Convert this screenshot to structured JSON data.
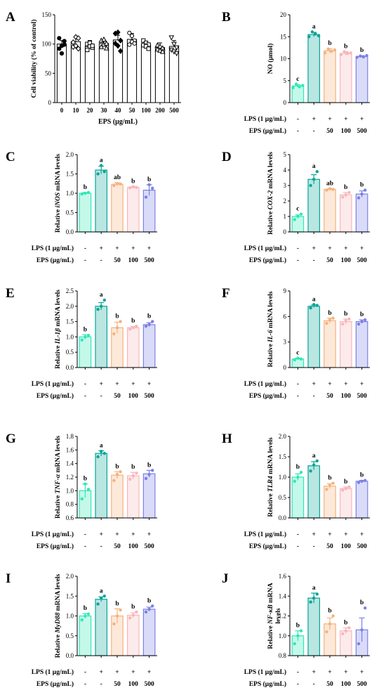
{
  "colors": {
    "ctrl": "#2ee8b5",
    "lps": "#0aa598",
    "e50": "#f6b27c",
    "e100": "#f9b6ba",
    "e500": "#7b80e6",
    "axis": "#000000"
  },
  "chart_data": [
    {
      "id": "A",
      "panel_label": "A",
      "type": "bar",
      "categories": [
        "0",
        "10",
        "20",
        "30",
        "40",
        "50",
        "100",
        "200",
        "500"
      ],
      "values": [
        100,
        104,
        96,
        101,
        107,
        108,
        99,
        94,
        96
      ],
      "points": [
        [
          92,
          97,
          105,
          110,
          84,
          99
        ],
        [
          95,
          112,
          110,
          103,
          97,
          92
        ],
        [
          100,
          96,
          94,
          90,
          102,
          97
        ],
        [
          106,
          99,
          101,
          95,
          108,
          93
        ],
        [
          118,
          120,
          106,
          101,
          97,
          88
        ],
        [
          119,
          114,
          106,
          99,
          104,
          101
        ],
        [
          106,
          102,
          99,
          98,
          96,
          92
        ],
        [
          98,
          96,
          93,
          91,
          89,
          87
        ],
        [
          111,
          100,
          94,
          90,
          87,
          84
        ]
      ],
      "markers": [
        "circle",
        "diamond",
        "square",
        "triangle",
        "diamond",
        "circle",
        "square",
        "triangle",
        "triangle-down"
      ],
      "ylabel": "Cell viability (% of control)",
      "xlabel": "EPS (μg/mL)",
      "ylim": [
        0,
        150
      ],
      "yticks": [
        "0",
        "50",
        "100",
        "150"
      ]
    },
    {
      "id": "B",
      "panel_label": "B",
      "type": "bar",
      "categories": [
        "ctrl",
        "lps",
        "e50",
        "e100",
        "e500"
      ],
      "values": [
        3.8,
        15.5,
        11.8,
        11.2,
        10.5
      ],
      "points": [
        [
          3.4,
          4.2,
          3.6,
          3.9
        ],
        [
          15.0,
          16.1,
          15.6,
          15.2
        ],
        [
          11.3,
          12.2,
          11.7,
          12.0
        ],
        [
          10.9,
          11.6,
          11.2,
          11.3
        ],
        [
          10.3,
          10.6,
          10.4,
          10.7
        ]
      ],
      "errors": [
        0.3,
        0.5,
        0.5,
        0.4,
        0.2
      ],
      "letters": [
        "c",
        "a",
        "b",
        "b",
        "b"
      ],
      "ylabel": "NO (μmol)",
      "italic": "",
      "ylim": [
        0,
        20
      ],
      "yticks": [
        "0",
        "5",
        "10",
        "15",
        "20"
      ]
    },
    {
      "id": "C",
      "panel_label": "C",
      "type": "bar",
      "categories": [
        "ctrl",
        "lps",
        "e50",
        "e100",
        "e500"
      ],
      "values": [
        1.0,
        1.6,
        1.23,
        1.15,
        1.08
      ],
      "points": [
        [
          0.98,
          1.0,
          1.02
        ],
        [
          1.5,
          1.72,
          1.56
        ],
        [
          1.2,
          1.25,
          1.24
        ],
        [
          1.14,
          1.17,
          1.15
        ],
        [
          0.9,
          1.22,
          1.13
        ]
      ],
      "errors": [
        0.02,
        0.1,
        0.04,
        0.02,
        0.14
      ],
      "letters": [
        "b",
        "a",
        "ab",
        "b",
        "b"
      ],
      "ylabel": [
        "Relative ",
        "iNOS",
        " mRNA levels"
      ],
      "ylim": [
        0,
        2.0
      ],
      "yticks": [
        "0.0",
        "0.5",
        "1.0",
        "1.5",
        "2.0"
      ]
    },
    {
      "id": "D",
      "panel_label": "D",
      "type": "bar",
      "categories": [
        "ctrl",
        "lps",
        "e50",
        "e100",
        "e500"
      ],
      "values": [
        1.0,
        3.4,
        2.75,
        2.4,
        2.45
      ],
      "points": [
        [
          0.8,
          1.0,
          1.15
        ],
        [
          3.0,
          3.4,
          3.9
        ],
        [
          2.7,
          2.8,
          2.75
        ],
        [
          2.25,
          2.4,
          2.55
        ],
        [
          2.2,
          2.45,
          2.7
        ]
      ],
      "errors": [
        0.1,
        0.3,
        0.05,
        0.15,
        0.2
      ],
      "letters": [
        "c",
        "a",
        "ab",
        "b",
        "b"
      ],
      "ylabel": [
        "Relative ",
        "COX-2",
        "  mRNA levels"
      ],
      "ylim": [
        0,
        5
      ],
      "yticks": [
        "0",
        "1",
        "2",
        "3",
        "4",
        "5"
      ]
    },
    {
      "id": "E",
      "panel_label": "E",
      "type": "bar",
      "categories": [
        "ctrl",
        "lps",
        "e50",
        "e100",
        "e500"
      ],
      "values": [
        1.0,
        2.0,
        1.3,
        1.3,
        1.4
      ],
      "points": [
        [
          0.9,
          1.0,
          1.05
        ],
        [
          1.9,
          2.0,
          2.2
        ],
        [
          1.1,
          1.3,
          1.5
        ],
        [
          1.25,
          1.3,
          1.35
        ],
        [
          1.35,
          1.4,
          1.5
        ]
      ],
      "errors": [
        0.07,
        0.12,
        0.18,
        0.04,
        0.06
      ],
      "letters": [
        "b",
        "a",
        "b",
        "b",
        "b"
      ],
      "ylabel": [
        "Relative ",
        "IL-1β",
        " mRNA levels"
      ],
      "ylim": [
        0,
        2.5
      ],
      "yticks": [
        "0.0",
        "0.5",
        "1.0",
        "1.5",
        "2.0",
        "2.5"
      ]
    },
    {
      "id": "F",
      "panel_label": "F",
      "type": "bar",
      "categories": [
        "ctrl",
        "lps",
        "e50",
        "e100",
        "e500"
      ],
      "values": [
        1.0,
        7.2,
        5.5,
        5.4,
        5.4
      ],
      "points": [
        [
          0.9,
          1.1,
          1.0
        ],
        [
          7.0,
          7.4,
          7.3
        ],
        [
          5.2,
          5.6,
          5.8
        ],
        [
          5.1,
          5.5,
          5.7
        ],
        [
          5.1,
          5.4,
          5.6
        ]
      ],
      "errors": [
        0.1,
        0.15,
        0.3,
        0.3,
        0.2
      ],
      "letters": [
        "c",
        "a",
        "b",
        "b",
        "b"
      ],
      "ylabel": [
        "Relative ",
        "IL-6",
        " mRNA levels"
      ],
      "ylim": [
        0,
        9
      ],
      "yticks": [
        "0",
        "3",
        "6",
        "9"
      ]
    },
    {
      "id": "G",
      "panel_label": "G",
      "type": "bar",
      "categories": [
        "ctrl",
        "lps",
        "e50",
        "e100",
        "e500"
      ],
      "values": [
        1.0,
        1.55,
        1.23,
        1.22,
        1.25
      ],
      "points": [
        [
          0.88,
          1.1,
          1.02
        ],
        [
          1.5,
          1.58,
          1.55
        ],
        [
          1.15,
          1.24,
          1.28
        ],
        [
          1.17,
          1.22,
          1.26
        ],
        [
          1.18,
          1.24,
          1.3
        ]
      ],
      "errors": [
        0.1,
        0.04,
        0.05,
        0.05,
        0.05
      ],
      "letters": [
        "b",
        "a",
        "b",
        "b",
        "b"
      ],
      "ylabel": [
        "Relative ",
        "TNF-α",
        " mRNA levels"
      ],
      "ylim": [
        0.6,
        1.8
      ],
      "yticks": [
        "0.6",
        "0.8",
        "1.0",
        "1.2",
        "1.4",
        "1.6",
        "1.8"
      ]
    },
    {
      "id": "H",
      "panel_label": "H",
      "type": "bar",
      "categories": [
        "ctrl",
        "lps",
        "e50",
        "e100",
        "e500"
      ],
      "values": [
        1.0,
        1.28,
        0.78,
        0.72,
        0.9
      ],
      "points": [
        [
          0.9,
          1.0,
          1.12
        ],
        [
          1.15,
          1.3,
          1.4
        ],
        [
          0.7,
          0.8,
          0.85
        ],
        [
          0.68,
          0.72,
          0.76
        ],
        [
          0.87,
          0.9,
          0.92
        ]
      ],
      "errors": [
        0.08,
        0.1,
        0.06,
        0.04,
        0.02
      ],
      "letters": [
        "b",
        "a",
        "b",
        "b",
        "b"
      ],
      "ylabel": [
        "Relative ",
        "TLR4",
        " mRNA levels"
      ],
      "ylim": [
        0,
        2.0
      ],
      "yticks": [
        "0.0",
        "0.5",
        "1.0",
        "1.5",
        "2.0"
      ]
    },
    {
      "id": "I",
      "panel_label": "I",
      "type": "bar",
      "categories": [
        "ctrl",
        "lps",
        "e50",
        "e100",
        "e500"
      ],
      "values": [
        1.0,
        1.42,
        1.0,
        1.02,
        1.17
      ],
      "points": [
        [
          0.9,
          1.0,
          1.05
        ],
        [
          1.3,
          1.45,
          1.5
        ],
        [
          0.8,
          1.0,
          1.15
        ],
        [
          0.95,
          1.02,
          1.1
        ],
        [
          1.1,
          1.17,
          1.25
        ]
      ],
      "errors": [
        0.06,
        0.06,
        0.18,
        0.06,
        0.05
      ],
      "letters": [
        "b",
        "a",
        "b",
        "b",
        "b"
      ],
      "ylabel": [
        "Relative ",
        "MyD88",
        " mRNA levels"
      ],
      "ylim": [
        0,
        2.0
      ],
      "yticks": [
        "0.0",
        "0.5",
        "1.0",
        "1.5",
        "2.0"
      ]
    },
    {
      "id": "J",
      "panel_label": "J",
      "type": "bar",
      "categories": [
        "ctrl",
        "lps",
        "e50",
        "e100",
        "e500"
      ],
      "values": [
        1.0,
        1.38,
        1.12,
        1.05,
        1.06
      ],
      "points": [
        [
          0.92,
          1.0,
          1.05
        ],
        [
          1.34,
          1.38,
          1.42
        ],
        [
          1.04,
          1.12,
          1.2
        ],
        [
          1.02,
          1.05,
          1.08
        ],
        [
          0.92,
          1.06,
          1.28
        ]
      ],
      "errors": [
        0.05,
        0.05,
        0.06,
        0.03,
        0.12
      ],
      "letters": [
        "b",
        "a",
        "b",
        "b",
        "b"
      ],
      "ylabel": [
        "Relative ",
        "NF-κB",
        " mRNA"
      ],
      "ylabel2": "levels",
      "ylim": [
        0.8,
        1.6
      ],
      "yticks": [
        "0.8",
        "1.0",
        "1.2",
        "1.4",
        "1.6"
      ]
    }
  ],
  "treatment_table": {
    "lps_label": "LPS (1 μg/mL)",
    "eps_label": "EPS (μg/mL)",
    "lps_row": [
      "-",
      "+",
      "+",
      "+",
      "+"
    ],
    "eps_row": [
      "-",
      "-",
      "50",
      "100",
      "500"
    ]
  }
}
